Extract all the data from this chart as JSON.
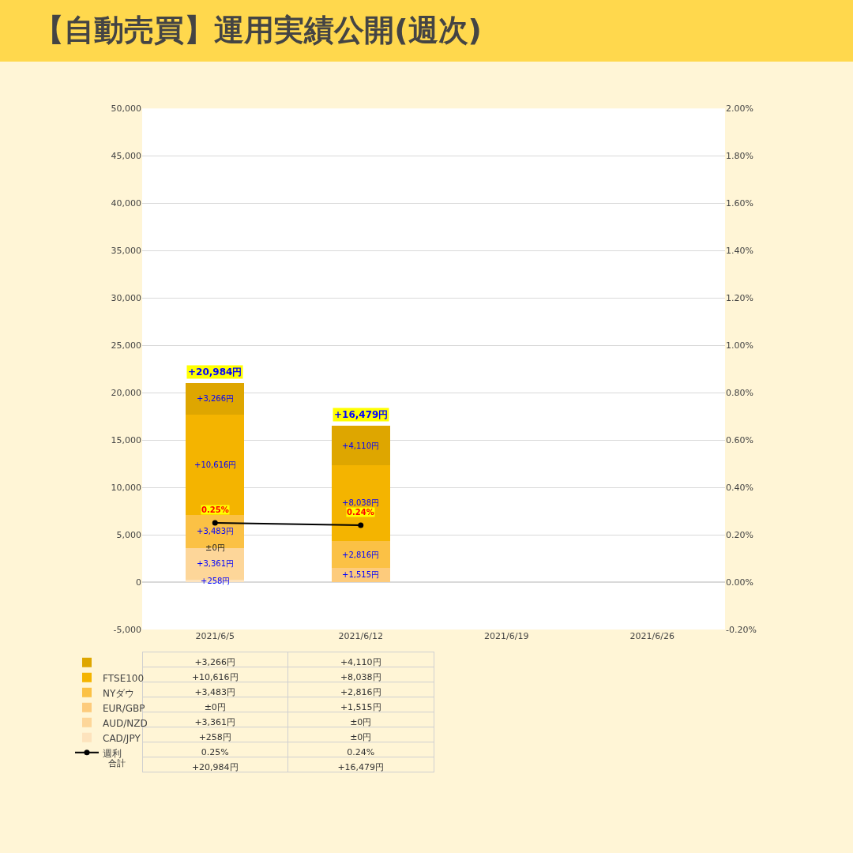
{
  "chart_data": {
    "type": "bar",
    "title": "【自動売買】運用実績公開(週次)",
    "stacked": true,
    "categories": [
      "2021/6/5",
      "2021/6/12",
      "2021/6/19",
      "2021/6/26"
    ],
    "series": [
      {
        "name": "CAD/JPY",
        "color": "#fde3bd",
        "values": [
          258,
          0,
          null,
          null
        ],
        "value_labels": [
          "+258円",
          "±0円",
          null,
          null
        ]
      },
      {
        "name": "AUD/NZD",
        "color": "#fdd699",
        "values": [
          3361,
          0,
          null,
          null
        ],
        "value_labels": [
          "+3,361円",
          "±0円",
          null,
          null
        ]
      },
      {
        "name": "EUR/GBP",
        "color": "#fdcb7c",
        "values": [
          0,
          1515,
          null,
          null
        ],
        "value_labels": [
          "±0円",
          "+1,515円",
          null,
          null
        ]
      },
      {
        "name": "NYダウ",
        "color": "#fbc145",
        "values": [
          3483,
          2816,
          null,
          null
        ],
        "value_labels": [
          "+3,483円",
          "+2,816円",
          null,
          null
        ]
      },
      {
        "name": "FTSE100",
        "color": "#f4b400",
        "values": [
          10616,
          8038,
          null,
          null
        ],
        "value_labels": [
          "+10,616円",
          "+8,038円",
          null,
          null
        ]
      },
      {
        "name": null,
        "color": "#dea600",
        "values": [
          3266,
          4110,
          null,
          null
        ],
        "value_labels": [
          "+3,266円",
          "+4,110円",
          null,
          null
        ]
      },
      {
        "name": "週利",
        "type": "line",
        "axis": "y2",
        "color": "#000000",
        "marker": "circle",
        "values": [
          0.25,
          0.24,
          null,
          null
        ],
        "value_labels": [
          "0.25%",
          "0.24%",
          null,
          null
        ]
      }
    ],
    "totals": [
      "+20,984円",
      "+16,479円",
      null,
      null
    ],
    "annotations": [
      "合計"
    ],
    "ylim": [
      -5000,
      50000
    ],
    "yticks": [
      {
        "value": -5000,
        "label": "-5,000"
      },
      0,
      {
        "value": 5000,
        "label": "5,000"
      },
      {
        "value": 10000,
        "label": "10,000"
      },
      {
        "value": 15000,
        "label": "15,000"
      },
      {
        "value": 20000,
        "label": "20,000"
      },
      {
        "value": 25000,
        "label": "25,000"
      },
      {
        "value": 30000,
        "label": "30,000"
      },
      {
        "value": 35000,
        "label": "35,000"
      },
      {
        "value": 40000,
        "label": "40,000"
      },
      {
        "value": 45000,
        "label": "45,000"
      },
      {
        "value": 50000,
        "label": "50,000"
      }
    ],
    "y2lim": [
      -0.2,
      2.0
    ],
    "y2ticks": [
      {
        "value": -0.2,
        "label": "-0.20%"
      },
      {
        "value": 0,
        "label": "0.00%"
      },
      {
        "value": 0.2,
        "label": "0.20%"
      },
      {
        "value": 0.4,
        "label": "0.40%"
      },
      {
        "value": 0.6,
        "label": "0.60%"
      },
      {
        "value": 0.8,
        "label": "0.80%"
      },
      {
        "value": 1.0,
        "label": "1.00%"
      },
      {
        "value": 1.2,
        "label": "1.20%"
      },
      {
        "value": 1.4,
        "label": "1.40%"
      },
      {
        "value": 1.6,
        "label": "1.60%"
      },
      {
        "value": 1.8,
        "label": "1.80%"
      },
      {
        "value": 2.0,
        "label": "2.00%"
      }
    ],
    "grid": "y",
    "legend": "bottom left"
  }
}
